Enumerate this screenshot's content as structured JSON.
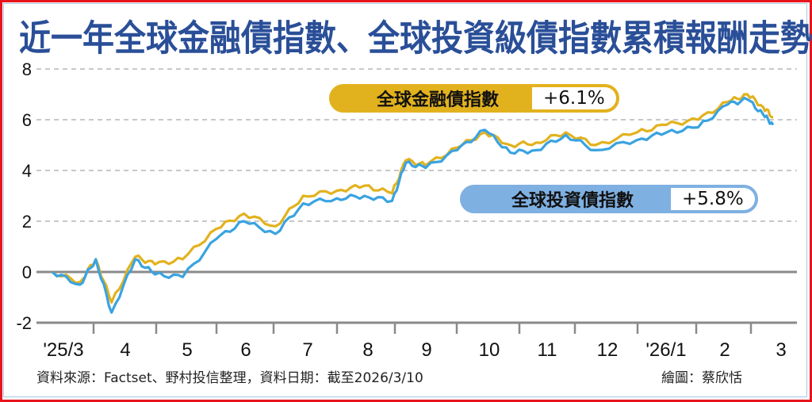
{
  "title": "近一年全球金融債指數、全球投資級債指數累積報酬走勢",
  "legend": {
    "financial": {
      "label": "全球金融債指數",
      "value": "+6.1%",
      "color": "#e2b21e"
    },
    "investment": {
      "label": "全球投資債指數",
      "value": "+5.8%",
      "color": "#3aa3e0"
    }
  },
  "footer": {
    "source": "資料來源：Factset、野村投信整理，資料日期：截至2026/3/10",
    "credit": "繪圖：蔡欣恬"
  },
  "chart_data": {
    "type": "line",
    "title": "近一年全球金融債指數、全球投資級債指數累積報酬走勢",
    "xlabel": "",
    "ylabel": "",
    "ylim": [
      -2,
      8
    ],
    "yticks": [
      8,
      6,
      4,
      2,
      0,
      -2
    ],
    "grid": "horizontal dashed",
    "legend_position": "inline annotations",
    "categories": [
      "'25/3",
      "4",
      "5",
      "6",
      "7",
      "8",
      "9",
      "10",
      "11",
      "12",
      "'26/1",
      "2",
      "3"
    ],
    "series": [
      {
        "name": "全球金融債指數",
        "color": "#e2b21e",
        "end_value": 6.1,
        "x": [
          "2025/3/10",
          "2025/3/24",
          "2025/4/1",
          "2025/4/9",
          "2025/4/21",
          "2025/5/1",
          "2025/5/15",
          "2025/6/1",
          "2025/6/15",
          "2025/7/1",
          "2025/7/15",
          "2025/8/1",
          "2025/8/15",
          "2025/8/29",
          "2025/9/5",
          "2025/9/15",
          "2025/10/1",
          "2025/10/15",
          "2025/10/28",
          "2025/11/10",
          "2025/11/25",
          "2025/12/10",
          "2025/12/31",
          "2026/1/15",
          "2026/1/31",
          "2026/2/15",
          "2026/2/25",
          "2026/3/5",
          "2026/3/10"
        ],
        "values": [
          0.0,
          -0.4,
          0.5,
          -1.2,
          0.6,
          0.3,
          0.5,
          1.7,
          2.3,
          1.8,
          3.0,
          3.2,
          3.4,
          3.1,
          4.4,
          4.2,
          4.9,
          5.5,
          5.0,
          5.1,
          5.5,
          5.0,
          5.5,
          5.8,
          6.0,
          6.7,
          7.0,
          6.5,
          6.1
        ]
      },
      {
        "name": "全球投資債指數",
        "color": "#3aa3e0",
        "end_value": 5.8,
        "x": [
          "2025/3/10",
          "2025/3/24",
          "2025/4/1",
          "2025/4/9",
          "2025/4/21",
          "2025/5/1",
          "2025/5/15",
          "2025/6/1",
          "2025/6/15",
          "2025/7/1",
          "2025/7/15",
          "2025/8/1",
          "2025/8/15",
          "2025/8/29",
          "2025/9/5",
          "2025/9/15",
          "2025/10/1",
          "2025/10/15",
          "2025/10/28",
          "2025/11/10",
          "2025/11/25",
          "2025/12/10",
          "2025/12/31",
          "2026/1/15",
          "2026/1/31",
          "2026/2/15",
          "2026/2/25",
          "2026/3/5",
          "2026/3/10"
        ],
        "values": [
          0.0,
          -0.5,
          0.5,
          -1.6,
          0.5,
          -0.1,
          -0.2,
          1.3,
          2.0,
          1.5,
          2.7,
          2.9,
          3.0,
          2.8,
          4.3,
          4.1,
          4.8,
          5.6,
          4.7,
          4.8,
          5.4,
          4.8,
          5.2,
          5.5,
          5.7,
          6.6,
          6.8,
          6.2,
          5.8
        ]
      }
    ]
  }
}
